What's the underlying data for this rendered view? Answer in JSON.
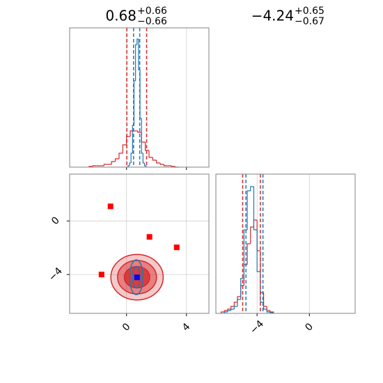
{
  "chart_data": [
    {
      "type": "histogram",
      "title": {
        "value": "0.68",
        "upper": "+0.66",
        "lower": "−0.66"
      },
      "xlim": [
        -3.8,
        5.5
      ],
      "xticks": [
        0,
        4
      ],
      "ylim": [
        0,
        1
      ],
      "grid": true,
      "series": [
        {
          "color": "#d62728",
          "bins": [
            -2.5,
            -2.25,
            -2,
            -1.75,
            -1.5,
            -1.25,
            -1,
            -0.75,
            -0.5,
            -0.25,
            0,
            0.25,
            0.5,
            0.75,
            1,
            1.25,
            1.5,
            1.75,
            2,
            2.25,
            2.5,
            2.75,
            3,
            3.25,
            3.5
          ],
          "values": [
            0.005,
            0.01,
            0.01,
            0.01,
            0.02,
            0.02,
            0.04,
            0.06,
            0.1,
            0.16,
            0.22,
            0.26,
            0.26,
            0.25,
            0.18,
            0.12,
            0.07,
            0.05,
            0.03,
            0.02,
            0.01,
            0.01,
            0.005,
            0
          ]
        },
        {
          "color": "#1f77b4",
          "bins": [
            0.1,
            0.2,
            0.3,
            0.4,
            0.5,
            0.6,
            0.7,
            0.8,
            0.9,
            1,
            1.1,
            1.2,
            1.3
          ],
          "values": [
            0.01,
            0.03,
            0.1,
            0.3,
            0.62,
            0.88,
            0.92,
            0.7,
            0.35,
            0.1,
            0.03,
            0.01
          ]
        }
      ],
      "dashed_lines": [
        {
          "color": "#d62728",
          "values": [
            0.02,
            1.34
          ]
        },
        {
          "color": "#1f77b4",
          "values": [
            0.47,
            0.88
          ]
        }
      ]
    },
    {
      "type": "scatter",
      "xlim": [
        -3.8,
        5.5
      ],
      "xticks": [
        0,
        4
      ],
      "ylim": [
        -6.9,
        3.5
      ],
      "yticks": [
        0,
        {
          "value": -4,
          "label": "−4"
        }
      ],
      "grid": true,
      "contours": [
        {
          "color": "#d62728",
          "center": [
            0.7,
            -4.2
          ],
          "rx": [
            1.75,
            1.3,
            0.85
          ],
          "ry": [
            1.7,
            1.25,
            0.8
          ]
        },
        {
          "color": "#1f77b4",
          "center": [
            0.65,
            -4.2
          ],
          "rx": [
            0.45,
            0.25
          ],
          "ry": [
            1.3,
            0.8
          ]
        }
      ],
      "series": [
        {
          "color": "#ff0000",
          "x": [
            -1.07,
            1.53,
            3.35,
            -1.67
          ],
          "y": [
            1.09,
            -1.19,
            -1.97,
            -4.0
          ]
        },
        {
          "color": "#0000ff",
          "x": [
            0.7
          ],
          "y": [
            -4.21
          ]
        }
      ]
    },
    {
      "type": "histogram",
      "title": {
        "value": "−4.24",
        "upper": "+0.65",
        "lower": "−0.67"
      },
      "xlim": [
        -7.15,
        3.5
      ],
      "xticks": [
        {
          "value": -4,
          "label": "−4"
        },
        0
      ],
      "ylim": [
        0,
        1
      ],
      "grid": true,
      "series": [
        {
          "color": "#d62728",
          "bins": [
            -6.75,
            -6.5,
            -6.25,
            -6,
            -5.75,
            -5.5,
            -5.25,
            -5,
            -4.75,
            -4.5,
            -4.25,
            -4,
            -3.75,
            -3.5,
            -3.25,
            -3,
            -2.75
          ],
          "values": [
            0.01,
            0.02,
            0.03,
            0.05,
            0.08,
            0.12,
            0.2,
            0.35,
            0.5,
            0.62,
            0.67,
            0.45,
            0.15,
            0.05,
            0.02,
            0.01
          ]
        },
        {
          "color": "#1f77b4",
          "bins": [
            -6.5,
            -6.25,
            -6,
            -5.75,
            -5.5,
            -5.25,
            -5,
            -4.75,
            -4.5,
            -4.25,
            -4,
            -3.75,
            -3.5,
            -3.25,
            -3,
            -2.75
          ],
          "values": [
            0.01,
            0.02,
            0.03,
            0.05,
            0.1,
            0.25,
            0.6,
            0.88,
            0.91,
            0.6,
            0.3,
            0.08,
            0.03,
            0.01,
            0.005
          ]
        }
      ],
      "dashed_lines": [
        {
          "color": "#d62728",
          "values": [
            -5.1,
            -3.75
          ]
        },
        {
          "color": "#1f77b4",
          "values": [
            -4.85,
            -3.55
          ]
        }
      ]
    }
  ]
}
